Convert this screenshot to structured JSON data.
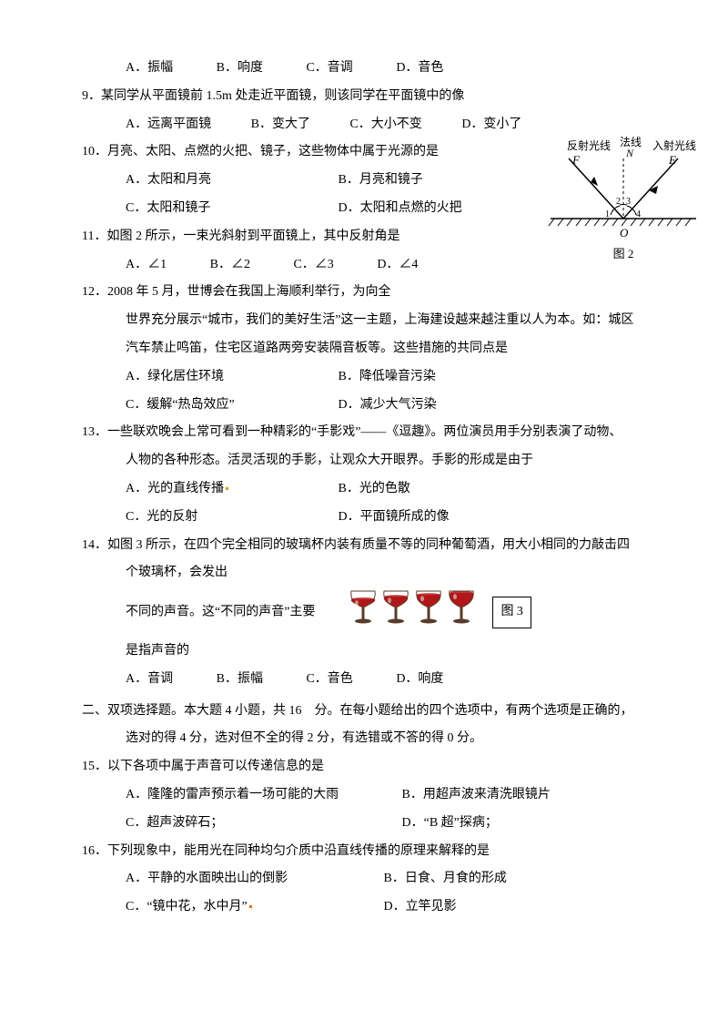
{
  "q8_choices": {
    "a": "A．振幅",
    "b": "B．响度",
    "c": "C．音调",
    "d": "D．音色"
  },
  "q9": {
    "stem": "9．某同学从平面镜前 1.5m 处走近平面镜，则该同学在平面镜中的像",
    "a": "A．远离平面镜",
    "b": "B．变大了",
    "c": "C．大小不变",
    "d": "D．变小了"
  },
  "q10": {
    "stem": "10．月亮、太阳、点燃的火把、镜子，这些物体中属于光源的是",
    "a": "A．太阳和月亮",
    "b": "B．月亮和镜子",
    "c": "C．太阳和镜子",
    "d": "D．太阳和点燃的火把"
  },
  "q11": {
    "stem": "11．如图 2 所示，一束光斜射到平面镜上，其中反射角是",
    "a": "A．∠1",
    "b": "B．∠2",
    "c": "C．∠3",
    "d": "D．∠4"
  },
  "fig2": {
    "label_reflect": "反射光线",
    "label_normal": "法线",
    "label_incident": "入射光线",
    "F": "F",
    "N": "N",
    "E": "E",
    "O": "O",
    "n1": "1",
    "n2": "2",
    "n3": "3",
    "n4": "4",
    "caption": "图 2"
  },
  "q12": {
    "l1": "12．2008 年 5 月，世博会在我国上海顺利举行，为向全",
    "l2": "世界充分展示“城市，我们的美好生活”这一主题，上海建设越来越注重以人为本。如：城区",
    "l3": "汽车禁止鸣笛，住宅区道路两旁安装隔音板等。这些措施的共同点是",
    "a": "A．绿化居住环境",
    "b": "B．降低噪音污染",
    "c": "C．缓解“热岛效应”",
    "d": "D．减少大气污染"
  },
  "q13": {
    "l1": "13．一些联欢晚会上常可看到一种精彩的“手影戏”——《逗趣》。两位演员用手分别表演了动物、",
    "l2": "人物的各种形态。活灵活现的手影，让观众大开眼界。手影的形成是由于",
    "a": "A．光的直线传播",
    "b": "B．光的色散",
    "c": "C．光的反射",
    "d": "D．平面镜所成的像"
  },
  "q14": {
    "l1": "14．如图 3 所示，在四个完全相同的玻璃杯内装有质量不等的同种葡萄酒，用大小相同的力敲击四",
    "l2a": "个玻璃杯，会发出",
    "l3": "不同的声音。这“不同的声音”主要",
    "l4": "是指声音的",
    "a": "A．音调",
    "b": "B．振幅",
    "c": "C．音色",
    "d": "D．响度"
  },
  "fig3": {
    "caption": "图 3",
    "cup_color": "#b01818",
    "stem_color": "#5a3b2a",
    "fills": [
      0.35,
      0.55,
      0.7,
      0.85
    ]
  },
  "sec2": {
    "l1": "二、双项选择题。本大题 4 小题，共 16　分。在每小题给出的四个选项中，有两个选项是正确的，",
    "l2": "选对的得 4 分，选对但不全的得 2 分，有选错或不答的得 0 分。"
  },
  "q15": {
    "stem": "15．以下各项中属于声音可以传递信息的是",
    "a": "A．隆隆的雷声预示着一场可能的大雨",
    "b": "B．用超声波来清洗眼镜片",
    "c": "C．超声波碎石；",
    "d": "D．“B 超”探病；"
  },
  "q16": {
    "stem": "16．下列现象中，能用光在同种均匀介质中沿直线传播的原理来解释的是",
    "a": "A．平静的水面映出山的倒影",
    "b": "B．日食、月食的形成",
    "c": "C．“镜中花，水中月”",
    "d": "D．立竿见影"
  }
}
